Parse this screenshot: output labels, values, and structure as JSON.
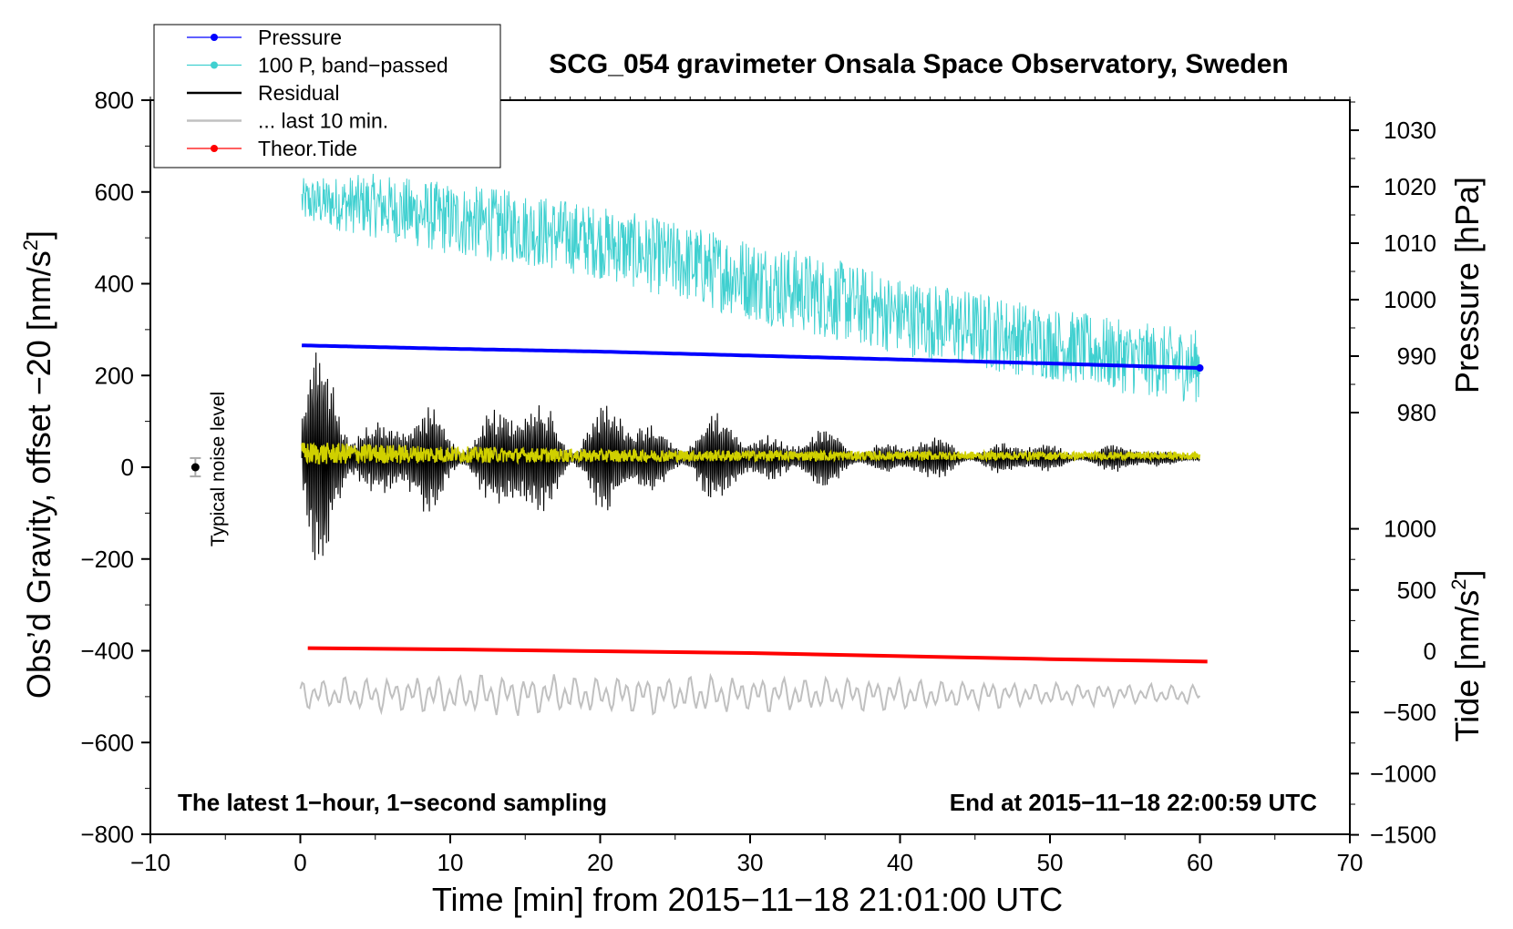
{
  "chart_data": {
    "type": "line",
    "title": "SCG_054 gravimeter Onsala Space Observatory, Sweden",
    "xlabel": "Time [min] from 2015−11−18 21:01:00 UTC",
    "ylabel": "Obs’d Gravity, offset −20 [nm/s",
    "ylabel_sup": "2",
    "ylabel_close": "]",
    "xlim": [
      -10,
      70
    ],
    "ylim": [
      -800,
      800
    ],
    "x_ticks": [
      -10,
      0,
      10,
      20,
      30,
      40,
      50,
      60,
      70
    ],
    "x_tick_labels": [
      "−10",
      "0",
      "10",
      "20",
      "30",
      "40",
      "50",
      "60",
      "70"
    ],
    "y_ticks": [
      -800,
      -600,
      -400,
      -200,
      0,
      200,
      400,
      600,
      800
    ],
    "y_tick_labels": [
      "−800",
      "−600",
      "−400",
      "−200",
      "0",
      "200",
      "400",
      "600",
      "800"
    ],
    "right_pressure_axis": {
      "label": "Pressure [hPa]",
      "ticks": [
        980,
        990,
        1000,
        1010,
        1020,
        1030
      ],
      "tick_labels": [
        "980",
        "990",
        "1000",
        "1010",
        "1020",
        "1030"
      ]
    },
    "right_tide_axis": {
      "label": "Tide [nm/s",
      "label_sup": "2",
      "label_close": "]",
      "ticks": [
        -1500,
        -1000,
        -500,
        0,
        500,
        1000
      ],
      "tick_labels": [
        "−1500",
        "−1000",
        "−500",
        "0",
        "500",
        "1000"
      ]
    },
    "legend": [
      {
        "label": "Pressure",
        "color": "#0000ff",
        "marker": true
      },
      {
        "label": "100 P, band−passed",
        "color": "#40d0d0",
        "marker": true
      },
      {
        "label": "Residual",
        "color": "#000000",
        "marker": false
      },
      {
        "label": "... last 10 min.",
        "color": "#c0c0c0",
        "marker": false
      },
      {
        "label": "Theor.Tide",
        "color": "#ff0000",
        "marker": true
      }
    ],
    "legend_position": "top-left",
    "series": [
      {
        "name": "Pressure",
        "axis": "pressure",
        "color": "#0000ff",
        "x": [
          0.1,
          10,
          20,
          30,
          40,
          50,
          60
        ],
        "values": [
          991.9,
          991.3,
          990.8,
          990.1,
          989.4,
          988.7,
          987.9
        ]
      },
      {
        "name": "100 P, band-passed",
        "color": "#40d0d0",
        "x": [
          0.1,
          5,
          10,
          15,
          20,
          25,
          30,
          35,
          40,
          45,
          50,
          55,
          60
        ],
        "values": [
          580,
          570,
          540,
          520,
          490,
          450,
          410,
          370,
          330,
          300,
          270,
          240,
          220
        ],
        "envelope": [
          50,
          70,
          80,
          80,
          80,
          85,
          90,
          90,
          85,
          85,
          80,
          80,
          80
        ]
      },
      {
        "name": "Residual",
        "color": "#000000",
        "x": [
          0.1,
          1,
          5,
          10,
          15,
          20,
          25,
          30,
          35,
          40,
          45,
          50,
          55,
          60
        ],
        "values": [
          20,
          20,
          20,
          20,
          20,
          20,
          20,
          20,
          20,
          20,
          20,
          20,
          20,
          20
        ],
        "envelope": [
          150,
          280,
          140,
          130,
          170,
          140,
          110,
          100,
          70,
          55,
          50,
          40,
          35,
          25
        ]
      },
      {
        "name": "... last 10 min.",
        "color": "#c0c0c0",
        "x": [
          0,
          10,
          20,
          30,
          40,
          50,
          60
        ],
        "values": [
          -495,
          -495,
          -495,
          -495,
          -495,
          -495,
          -495
        ],
        "envelope": [
          40,
          50,
          50,
          45,
          40,
          30,
          25
        ]
      },
      {
        "name": "Theor.Tide",
        "axis": "tide",
        "color": "#ff0000",
        "x": [
          0.5,
          10,
          20,
          30,
          40,
          50,
          60.5
        ],
        "values": [
          25,
          15,
          0,
          -15,
          -40,
          -65,
          -85
        ]
      },
      {
        "name": "Yellow",
        "color": "#d0d000",
        "x": [
          0.1,
          10,
          20,
          30,
          40,
          50,
          60
        ],
        "values": [
          30,
          28,
          25,
          25,
          25,
          25,
          25
        ],
        "envelope": [
          25,
          18,
          14,
          12,
          10,
          9,
          8
        ]
      }
    ],
    "noise_marker": {
      "x": -7,
      "y": 0,
      "err": 20,
      "label": "Typical noise level"
    },
    "annotations": {
      "left": "The latest 1−hour, 1−second sampling",
      "right": "End at 2015−11−18 22:00:59 UTC"
    }
  }
}
